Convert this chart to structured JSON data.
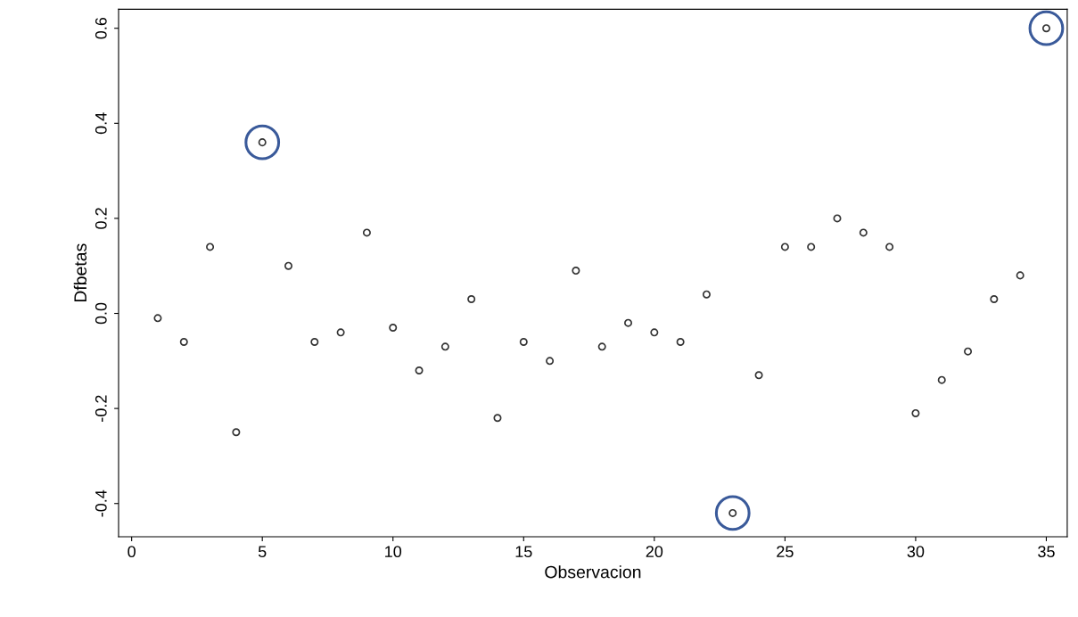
{
  "chart_data": {
    "type": "scatter",
    "xlabel": "Observacion",
    "ylabel": "Dfbetas",
    "x": [
      1,
      2,
      3,
      4,
      5,
      6,
      7,
      8,
      9,
      10,
      11,
      12,
      13,
      14,
      15,
      16,
      17,
      18,
      19,
      20,
      21,
      22,
      23,
      24,
      25,
      26,
      27,
      28,
      29,
      30,
      31,
      32,
      33,
      34,
      35
    ],
    "series": [
      {
        "color": "#333333",
        "marker": "circle",
        "values": [
          -0.01,
          -0.06,
          0.14,
          -0.25,
          0.36,
          0.1,
          -0.06,
          -0.04,
          0.17,
          -0.03,
          -0.12,
          -0.07,
          0.03,
          -0.22,
          -0.06,
          -0.1,
          0.09,
          -0.07,
          -0.02,
          -0.04,
          -0.06,
          0.04,
          -0.42,
          -0.13,
          0.14,
          0.14,
          0.2,
          0.17,
          0.14,
          -0.21,
          -0.14,
          -0.08,
          0.03,
          0.08,
          0.6
        ]
      },
      {
        "color": "#3a5a9a",
        "marker": "circle",
        "x": [
          5,
          23,
          35
        ],
        "values": [
          0.36,
          -0.42,
          0.6
        ]
      }
    ],
    "xlim": [
      -0.5,
      35.8
    ],
    "ylim": [
      -0.47,
      0.64
    ],
    "xticks": [
      0,
      5,
      10,
      15,
      20,
      25,
      30,
      35
    ],
    "yticks": [
      -0.4,
      -0.2,
      {
        "value": 0,
        "label": "0.0"
      },
      0.2,
      0.4,
      0.6
    ],
    "grid": false
  }
}
